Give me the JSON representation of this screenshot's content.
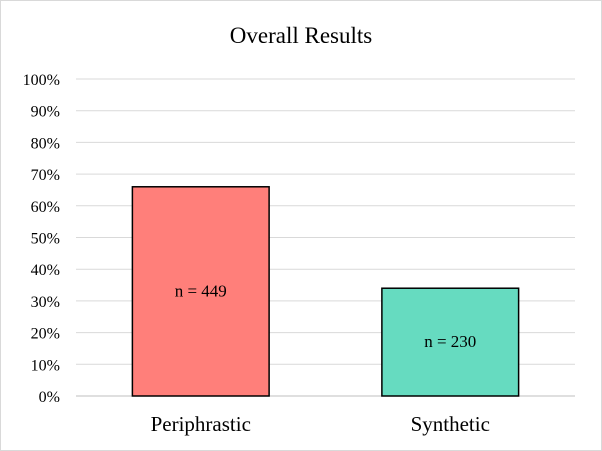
{
  "chart_data": {
    "type": "bar",
    "title": "Overall Results",
    "xlabel": "",
    "ylabel": "",
    "categories": [
      "Periphrastic",
      "Synthetic"
    ],
    "values": [
      66,
      34
    ],
    "value_unit": "%",
    "data_labels": [
      "n = 449",
      "n = 230"
    ],
    "colors": [
      "#ff7f7a",
      "#66dbc0"
    ],
    "yticks": [
      "0%",
      "10%",
      "20%",
      "30%",
      "40%",
      "50%",
      "60%",
      "70%",
      "80%",
      "90%",
      "100%"
    ],
    "ylim": [
      0,
      100
    ],
    "grid": true,
    "legend": "none"
  }
}
